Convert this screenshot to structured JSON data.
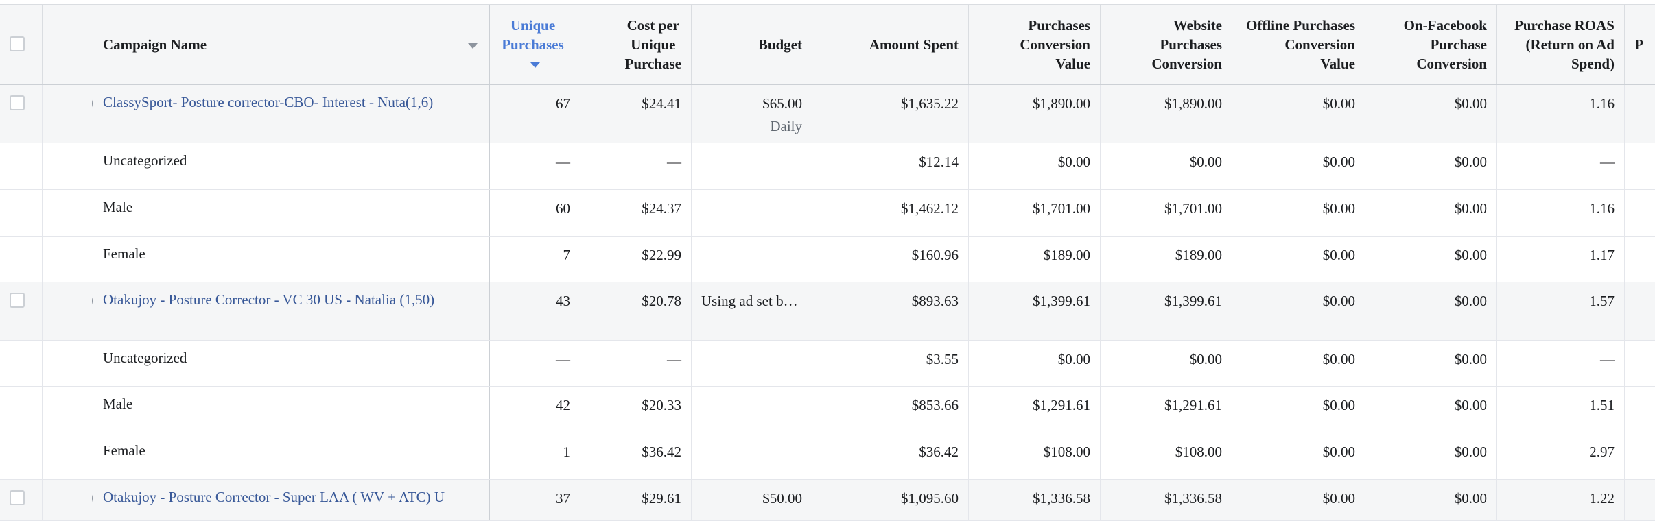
{
  "columns": {
    "campaign_name": "Campaign Name",
    "unique_purchases": [
      "Unique",
      "Purchases"
    ],
    "cost_per_unique": [
      "Cost per",
      "Unique",
      "Purchase"
    ],
    "budget": "Budget",
    "amount_spent": "Amount Spent",
    "purchases_conv_value": [
      "Purchases",
      "Conversion",
      "Value"
    ],
    "website_purchases": [
      "Website",
      "Purchases",
      "Conversion"
    ],
    "offline_purchases": [
      "Offline Purchases",
      "Conversion",
      "Value"
    ],
    "onfacebook_purchase": [
      "On-Facebook",
      "Purchase",
      "Conversion"
    ],
    "purchase_roas": [
      "Purchase ROAS",
      "(Return on Ad",
      "Spend)"
    ],
    "next_col": "P"
  },
  "rows": [
    {
      "type": "campaign",
      "name": "ClassySport- Posture corrector-CBO- Interest - Nuta(1,6)",
      "unique": "67",
      "cpu": "$24.41",
      "budget": "$65.00",
      "budget_sub": "Daily",
      "spent": "$1,635.22",
      "pcv": "$1,890.00",
      "wpc": "$1,890.00",
      "opc": "$0.00",
      "ofp": "$0.00",
      "roas": "1.16"
    },
    {
      "type": "breakdown",
      "name": "Uncategorized",
      "unique": "—",
      "cpu": "—",
      "budget": "",
      "budget_sub": "",
      "spent": "$12.14",
      "pcv": "$0.00",
      "wpc": "$0.00",
      "opc": "$0.00",
      "ofp": "$0.00",
      "roas": "—"
    },
    {
      "type": "breakdown",
      "name": "Male",
      "unique": "60",
      "cpu": "$24.37",
      "budget": "",
      "budget_sub": "",
      "spent": "$1,462.12",
      "pcv": "$1,701.00",
      "wpc": "$1,701.00",
      "opc": "$0.00",
      "ofp": "$0.00",
      "roas": "1.16"
    },
    {
      "type": "breakdown",
      "name": "Female",
      "unique": "7",
      "cpu": "$22.99",
      "budget": "",
      "budget_sub": "",
      "spent": "$160.96",
      "pcv": "$189.00",
      "wpc": "$189.00",
      "opc": "$0.00",
      "ofp": "$0.00",
      "roas": "1.17"
    },
    {
      "type": "campaign",
      "name": "Otakujoy - Posture Corrector - VC 30 US - Natalia (1,50)",
      "unique": "43",
      "cpu": "$20.78",
      "budget": "Using ad set b…",
      "budget_sub": "",
      "spent": "$893.63",
      "pcv": "$1,399.61",
      "wpc": "$1,399.61",
      "opc": "$0.00",
      "ofp": "$0.00",
      "roas": "1.57"
    },
    {
      "type": "breakdown",
      "name": "Uncategorized",
      "unique": "—",
      "cpu": "—",
      "budget": "",
      "budget_sub": "",
      "spent": "$3.55",
      "pcv": "$0.00",
      "wpc": "$0.00",
      "opc": "$0.00",
      "ofp": "$0.00",
      "roas": "—"
    },
    {
      "type": "breakdown",
      "name": "Male",
      "unique": "42",
      "cpu": "$20.33",
      "budget": "",
      "budget_sub": "",
      "spent": "$853.66",
      "pcv": "$1,291.61",
      "wpc": "$1,291.61",
      "opc": "$0.00",
      "ofp": "$0.00",
      "roas": "1.51"
    },
    {
      "type": "breakdown",
      "name": "Female",
      "unique": "1",
      "cpu": "$36.42",
      "budget": "",
      "budget_sub": "",
      "spent": "$36.42",
      "pcv": "$108.00",
      "wpc": "$108.00",
      "opc": "$0.00",
      "ofp": "$0.00",
      "roas": "2.97"
    },
    {
      "type": "campaign",
      "name": "Otakujoy - Posture Corrector - Super LAA ( WV + ATC) U",
      "unique": "37",
      "cpu": "$29.61",
      "budget": "$50.00",
      "budget_sub": "",
      "spent": "$1,095.60",
      "pcv": "$1,336.58",
      "wpc": "$1,336.58",
      "opc": "$0.00",
      "ofp": "$0.00",
      "roas": "1.22"
    }
  ]
}
